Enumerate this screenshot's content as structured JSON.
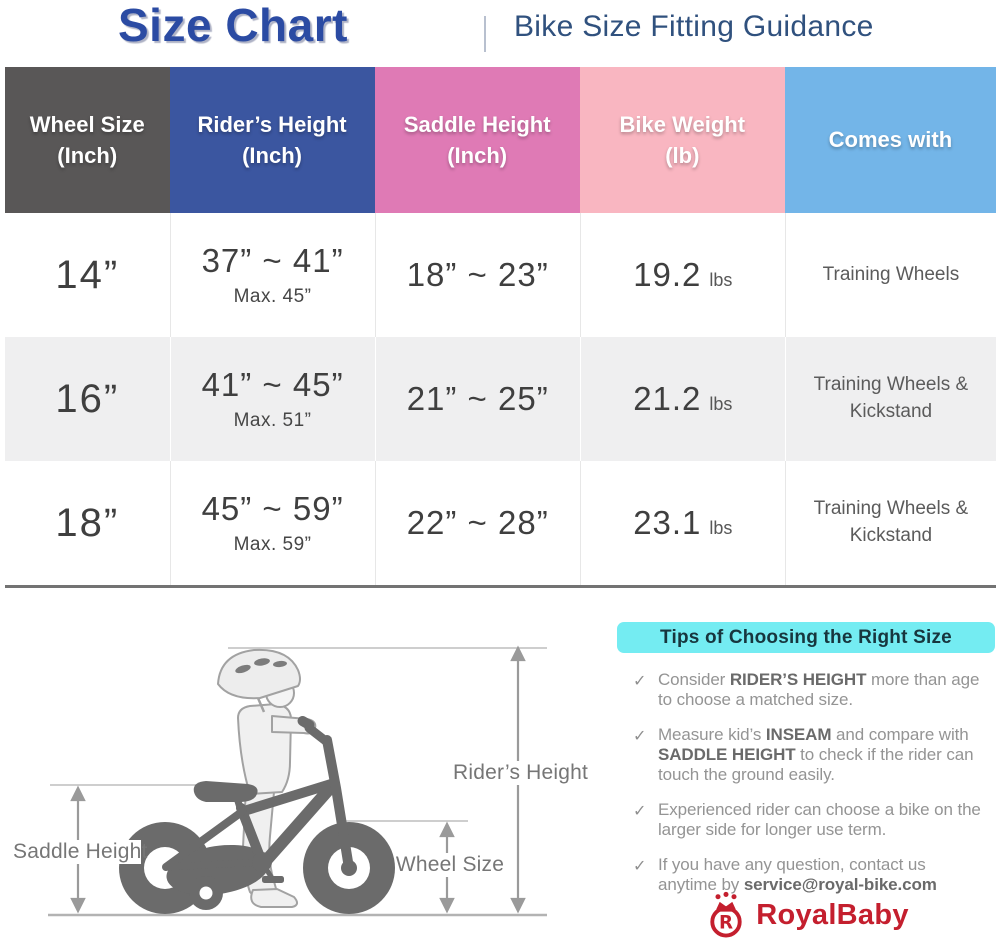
{
  "header": {
    "title": "Size Chart",
    "subtitle": "Bike Size Fitting Guidance",
    "title_color": "#2b4ba3",
    "subtitle_color": "#30517e"
  },
  "table": {
    "columns": [
      {
        "key": "wheel-size",
        "line1": "Wheel Size",
        "line2": "(Inch)",
        "bg": "#595757"
      },
      {
        "key": "rider-height",
        "line1": "Rider’s Height",
        "line2": "(Inch)",
        "bg": "#3b56a0"
      },
      {
        "key": "saddle-height",
        "line1": "Saddle Height",
        "line2": "(Inch)",
        "bg": "#df7ab5"
      },
      {
        "key": "bike-weight",
        "line1": "Bike Weight",
        "line2": "(lb)",
        "bg": "#f9b6c1"
      },
      {
        "key": "comes-with",
        "line1": "Comes with",
        "line2": "",
        "bg": "#73b5e8"
      }
    ],
    "rows": [
      {
        "wheel_size": "14”",
        "rider_height": "37” ~ 41”",
        "rider_height_max": "Max. 45”",
        "saddle_height": "18” ~ 23”",
        "bike_weight": "19.2",
        "weight_unit": "lbs",
        "comes_with": "Training Wheels"
      },
      {
        "wheel_size": "16”",
        "rider_height": "41” ~ 45”",
        "rider_height_max": "Max. 51”",
        "saddle_height": "21” ~ 25”",
        "bike_weight": "21.2",
        "weight_unit": "lbs",
        "comes_with": "Training Wheels & Kickstand"
      },
      {
        "wheel_size": "18”",
        "rider_height": "45” ~ 59”",
        "rider_height_max": "Max. 59”",
        "saddle_height": "22” ~ 28”",
        "bike_weight": "23.1",
        "weight_unit": "lbs",
        "comes_with": "Training Wheels & Kickstand"
      }
    ]
  },
  "diagram": {
    "rider_height_label": "Rider’s Height",
    "saddle_height_label": "Saddle Height",
    "wheel_size_label": "Wheel Size"
  },
  "tips": {
    "title": "Tips of Choosing the Right Size",
    "accent_color": "#74ecf2",
    "check_glyph": "✓",
    "items": [
      {
        "segments": [
          {
            "text": "Consider ",
            "bold": false
          },
          {
            "text": "RIDER’S HEIGHT",
            "bold": true
          },
          {
            "text": " more than age to choose a matched size.",
            "bold": false
          }
        ]
      },
      {
        "segments": [
          {
            "text": "Measure kid’s ",
            "bold": false
          },
          {
            "text": "INSEAM",
            "bold": true
          },
          {
            "text": " and compare with ",
            "bold": false
          },
          {
            "text": "SADDLE HEIGHT",
            "bold": true
          },
          {
            "text": " to check if the rider can touch the ground easily.",
            "bold": false
          }
        ]
      },
      {
        "segments": [
          {
            "text": "Experienced rider can choose a bike on the larger side for longer use term.",
            "bold": false
          }
        ]
      },
      {
        "segments": [
          {
            "text": "If you have any question, contact us anytime by ",
            "bold": false
          },
          {
            "text": "service@royal-bike.com",
            "bold": true
          }
        ]
      }
    ]
  },
  "brand": {
    "name": "RoyalBaby",
    "color": "#c41f2e"
  }
}
